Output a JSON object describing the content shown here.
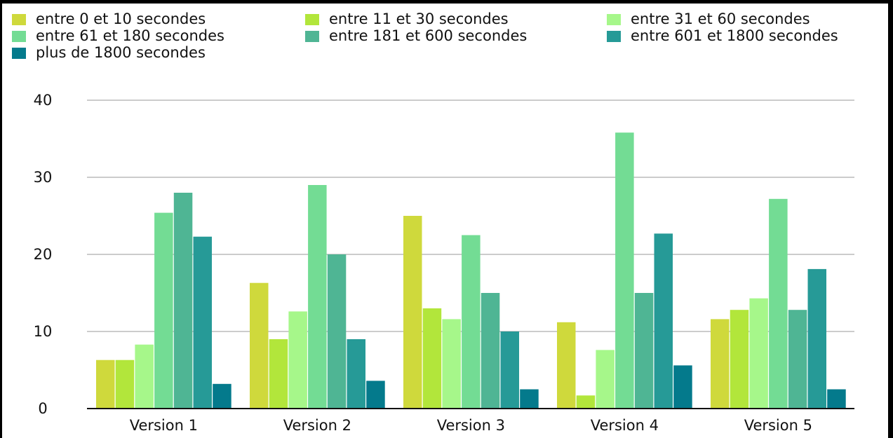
{
  "chart_data": {
    "type": "bar",
    "title": "",
    "xlabel": "",
    "ylabel": "",
    "ylim": [
      0,
      40
    ],
    "yticks": [
      0,
      10,
      20,
      30,
      40
    ],
    "grid": true,
    "legend_position": "top",
    "categories": [
      "Version 1",
      "Version 2",
      "Version 3",
      "Version 4",
      "Version 5"
    ],
    "series": [
      {
        "name": "entre 0 et 10 secondes",
        "color": "#cfd93c",
        "values": [
          6.3,
          16.3,
          25.0,
          11.2,
          11.6
        ]
      },
      {
        "name": "entre 11 et 30 secondes",
        "color": "#b2e63b",
        "values": [
          6.3,
          9.0,
          13.0,
          1.7,
          12.8
        ]
      },
      {
        "name": "entre 31 et 60 secondes",
        "color": "#a6f78a",
        "values": [
          8.3,
          12.6,
          11.6,
          7.6,
          14.3
        ]
      },
      {
        "name": "entre 61 et 180 secondes",
        "color": "#73dc94",
        "values": [
          25.4,
          29.0,
          22.5,
          35.8,
          27.2
        ]
      },
      {
        "name": "entre 181 et 600 secondes",
        "color": "#4fb594",
        "values": [
          28.0,
          20.0,
          15.0,
          15.0,
          12.8
        ]
      },
      {
        "name": "entre 601 et 1800 secondes",
        "color": "#269a97",
        "values": [
          22.3,
          9.0,
          10.0,
          22.7,
          18.1
        ]
      },
      {
        "name": "plus de 1800 secondes",
        "color": "#047a8c",
        "values": [
          3.2,
          3.6,
          2.5,
          5.6,
          2.5
        ]
      }
    ]
  }
}
